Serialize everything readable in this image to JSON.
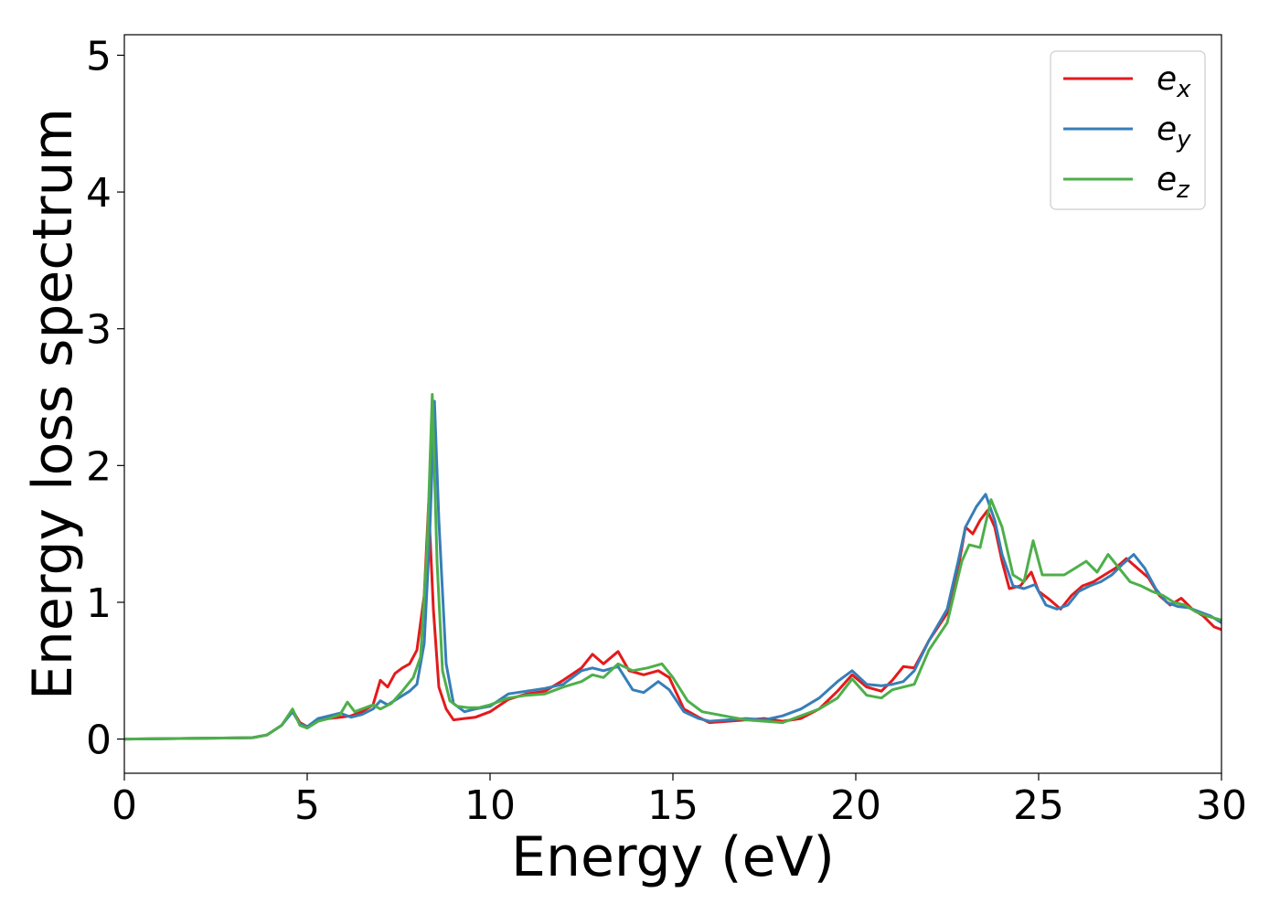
{
  "chart_data": {
    "type": "line",
    "title": "",
    "xlabel": "Energy (eV)",
    "ylabel": "Energy loss spectrum",
    "xlim": [
      0,
      30
    ],
    "ylim": [
      -0.25,
      5.15
    ],
    "xticks": [
      0,
      5,
      10,
      15,
      20,
      25,
      30
    ],
    "yticks": [
      0,
      1,
      2,
      3,
      4,
      5
    ],
    "grid": false,
    "legend_position": "top-right",
    "series": [
      {
        "name": "e",
        "subscript": "x",
        "color": "#e41a1c",
        "x": [
          0,
          3.5,
          3.9,
          4.3,
          4.6,
          4.8,
          5.0,
          5.3,
          5.6,
          5.9,
          6.2,
          6.5,
          6.8,
          7.0,
          7.2,
          7.4,
          7.6,
          7.8,
          8.0,
          8.2,
          8.32,
          8.45,
          8.6,
          8.8,
          9.0,
          9.3,
          9.6,
          10.0,
          10.5,
          11.0,
          11.5,
          12.0,
          12.5,
          12.8,
          13.1,
          13.5,
          13.8,
          14.2,
          14.6,
          14.9,
          15.3,
          15.7,
          16.0,
          16.5,
          17.0,
          17.5,
          18.0,
          18.5,
          19.0,
          19.5,
          19.9,
          20.3,
          20.7,
          21.0,
          21.3,
          21.6,
          22.0,
          22.5,
          22.8,
          23.0,
          23.2,
          23.4,
          23.6,
          23.8,
          24.0,
          24.2,
          24.5,
          24.8,
          25.0,
          25.3,
          25.6,
          25.9,
          26.2,
          26.5,
          26.8,
          27.1,
          27.4,
          27.7,
          28.0,
          28.3,
          28.6,
          28.9,
          29.2,
          29.5,
          29.8,
          30.0
        ],
        "values": [
          0,
          0.01,
          0.03,
          0.1,
          0.21,
          0.12,
          0.09,
          0.14,
          0.15,
          0.16,
          0.17,
          0.2,
          0.25,
          0.43,
          0.38,
          0.48,
          0.52,
          0.55,
          0.65,
          1.05,
          1.72,
          0.95,
          0.38,
          0.22,
          0.14,
          0.15,
          0.16,
          0.2,
          0.29,
          0.33,
          0.35,
          0.43,
          0.52,
          0.62,
          0.55,
          0.64,
          0.5,
          0.47,
          0.5,
          0.45,
          0.22,
          0.16,
          0.12,
          0.13,
          0.14,
          0.15,
          0.13,
          0.15,
          0.22,
          0.35,
          0.47,
          0.38,
          0.35,
          0.43,
          0.53,
          0.52,
          0.72,
          0.92,
          1.25,
          1.55,
          1.5,
          1.6,
          1.67,
          1.55,
          1.3,
          1.1,
          1.12,
          1.22,
          1.08,
          1.02,
          0.95,
          1.05,
          1.12,
          1.15,
          1.2,
          1.25,
          1.32,
          1.25,
          1.18,
          1.05,
          0.98,
          1.03,
          0.95,
          0.9,
          0.82,
          0.8
        ]
      },
      {
        "name": "e",
        "subscript": "y",
        "color": "#377eb8",
        "x": [
          0,
          3.5,
          3.9,
          4.3,
          4.6,
          4.8,
          5.0,
          5.3,
          5.6,
          5.9,
          6.2,
          6.5,
          6.8,
          7.0,
          7.2,
          7.5,
          7.8,
          8.0,
          8.2,
          8.35,
          8.48,
          8.6,
          8.8,
          9.0,
          9.3,
          9.6,
          10.0,
          10.5,
          11.0,
          11.5,
          12.0,
          12.5,
          12.8,
          13.1,
          13.5,
          13.9,
          14.2,
          14.6,
          14.9,
          15.3,
          15.7,
          16.0,
          16.5,
          17.0,
          17.5,
          18.0,
          18.5,
          19.0,
          19.5,
          19.9,
          20.3,
          20.7,
          21.0,
          21.3,
          21.6,
          22.0,
          22.5,
          22.8,
          23.0,
          23.3,
          23.55,
          23.8,
          24.0,
          24.3,
          24.6,
          24.9,
          25.2,
          25.5,
          25.8,
          26.1,
          26.4,
          26.7,
          27.0,
          27.3,
          27.6,
          27.9,
          28.2,
          28.5,
          28.8,
          29.1,
          29.4,
          29.7,
          30.0
        ],
        "values": [
          0,
          0.01,
          0.03,
          0.1,
          0.2,
          0.11,
          0.09,
          0.15,
          0.17,
          0.19,
          0.16,
          0.18,
          0.22,
          0.28,
          0.25,
          0.3,
          0.35,
          0.4,
          0.7,
          1.5,
          2.47,
          1.6,
          0.55,
          0.26,
          0.2,
          0.22,
          0.24,
          0.33,
          0.35,
          0.37,
          0.4,
          0.5,
          0.52,
          0.5,
          0.53,
          0.36,
          0.34,
          0.42,
          0.36,
          0.2,
          0.15,
          0.13,
          0.14,
          0.15,
          0.14,
          0.17,
          0.22,
          0.3,
          0.42,
          0.5,
          0.4,
          0.39,
          0.4,
          0.42,
          0.5,
          0.72,
          0.95,
          1.3,
          1.55,
          1.7,
          1.79,
          1.6,
          1.35,
          1.12,
          1.1,
          1.13,
          0.98,
          0.95,
          0.98,
          1.08,
          1.12,
          1.15,
          1.2,
          1.28,
          1.35,
          1.25,
          1.1,
          1.0,
          0.97,
          0.96,
          0.93,
          0.9,
          0.85
        ]
      },
      {
        "name": "e",
        "subscript": "z",
        "color": "#4daf4a",
        "x": [
          0,
          3.5,
          3.9,
          4.3,
          4.6,
          4.8,
          5.0,
          5.3,
          5.6,
          5.9,
          6.1,
          6.3,
          6.5,
          6.8,
          7.0,
          7.3,
          7.6,
          7.9,
          8.1,
          8.28,
          8.42,
          8.55,
          8.7,
          8.9,
          9.1,
          9.4,
          9.7,
          10.0,
          10.5,
          11.0,
          11.5,
          12.0,
          12.5,
          12.8,
          13.1,
          13.5,
          13.9,
          14.3,
          14.7,
          15.0,
          15.4,
          15.8,
          16.2,
          16.6,
          17.0,
          17.5,
          18.0,
          18.5,
          19.0,
          19.5,
          19.9,
          20.3,
          20.7,
          21.0,
          21.3,
          21.6,
          22.0,
          22.5,
          22.9,
          23.1,
          23.4,
          23.7,
          24.0,
          24.3,
          24.6,
          24.85,
          25.1,
          25.4,
          25.7,
          26.0,
          26.3,
          26.6,
          26.9,
          27.2,
          27.5,
          27.8,
          28.1,
          28.4,
          28.7,
          29.0,
          29.3,
          29.6,
          30.0
        ],
        "values": [
          0,
          0.01,
          0.03,
          0.1,
          0.22,
          0.1,
          0.08,
          0.13,
          0.15,
          0.18,
          0.27,
          0.2,
          0.22,
          0.25,
          0.22,
          0.26,
          0.35,
          0.45,
          0.6,
          1.4,
          2.52,
          1.3,
          0.5,
          0.28,
          0.24,
          0.23,
          0.23,
          0.25,
          0.3,
          0.32,
          0.33,
          0.38,
          0.42,
          0.47,
          0.45,
          0.55,
          0.5,
          0.52,
          0.55,
          0.45,
          0.28,
          0.2,
          0.18,
          0.16,
          0.14,
          0.13,
          0.12,
          0.17,
          0.22,
          0.3,
          0.44,
          0.32,
          0.3,
          0.36,
          0.38,
          0.4,
          0.65,
          0.85,
          1.3,
          1.42,
          1.4,
          1.75,
          1.55,
          1.2,
          1.15,
          1.45,
          1.2,
          1.2,
          1.2,
          1.25,
          1.3,
          1.22,
          1.35,
          1.25,
          1.15,
          1.12,
          1.08,
          1.05,
          1.0,
          0.98,
          0.93,
          0.9,
          0.87
        ]
      }
    ]
  }
}
